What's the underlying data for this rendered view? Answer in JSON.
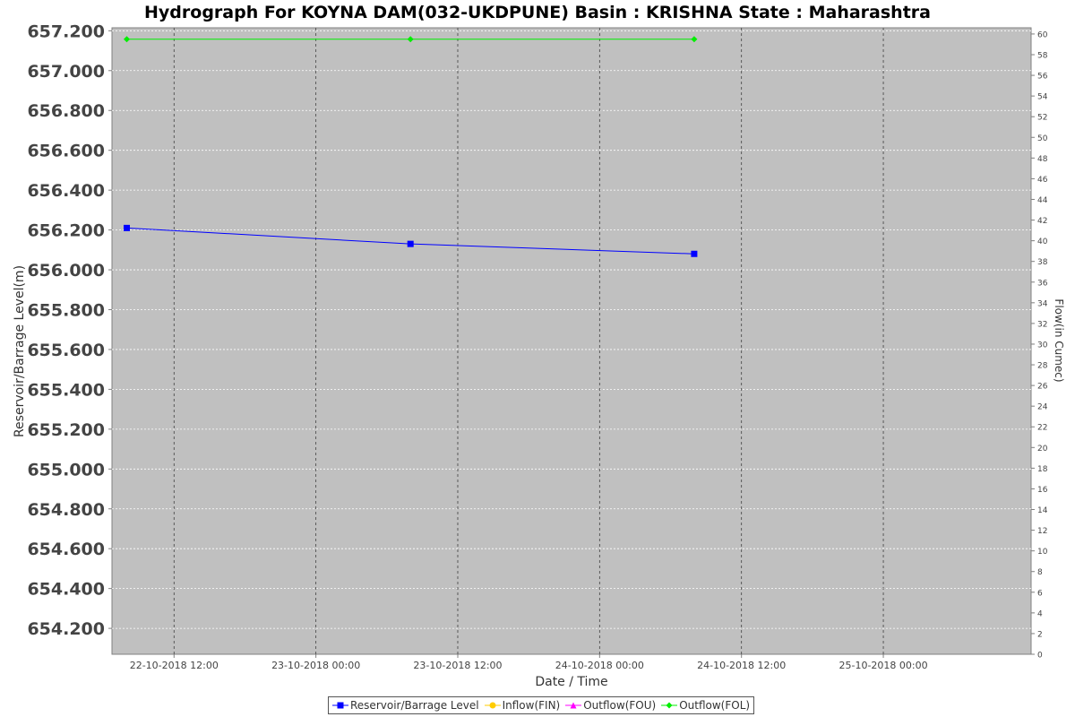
{
  "chart_data": {
    "type": "line",
    "title": "Hydrograph For KOYNA DAM(032-UKDPUNE) Basin : KRISHNA State : Maharashtra",
    "xlabel": "Date / Time",
    "ylabel": "Reservoir/Barrage Level(m)",
    "y2label": "Flow(in Cumec)",
    "x_ticks": [
      "22-10-2018 12:00",
      "23-10-2018 00:00",
      "23-10-2018 12:00",
      "24-10-2018 00:00",
      "24-10-2018 12:00",
      "25-10-2018 00:00"
    ],
    "y_ticks": [
      "654.200",
      "654.400",
      "654.600",
      "654.800",
      "655.000",
      "655.200",
      "655.400",
      "655.600",
      "655.800",
      "656.000",
      "656.200",
      "656.400",
      "656.600",
      "656.800",
      "657.000",
      "657.200"
    ],
    "y2_ticks": [
      "0",
      "2",
      "4",
      "6",
      "8",
      "10",
      "12",
      "14",
      "16",
      "18",
      "20",
      "22",
      "24",
      "26",
      "28",
      "30",
      "32",
      "34",
      "36",
      "38",
      "40",
      "42",
      "44",
      "46",
      "48",
      "50",
      "52",
      "54",
      "56",
      "58",
      "60"
    ],
    "xlim": [
      "2018-10-22 06:45",
      "2018-10-25 12:30"
    ],
    "ylim": [
      654.07,
      657.215
    ],
    "y2lim": [
      0,
      60.6
    ],
    "grid": true,
    "legend_position": "bottom",
    "series": [
      {
        "name": "Reservoir/Barrage Level",
        "axis": "left",
        "color": "#0000ff",
        "marker": "square",
        "x": [
          "2018-10-22 08:00",
          "2018-10-23 08:00",
          "2018-10-24 08:00"
        ],
        "values": [
          656.21,
          656.13,
          656.08
        ]
      },
      {
        "name": "Inflow(FIN)",
        "axis": "right",
        "color": "#ffcc00",
        "marker": "circle",
        "x": [],
        "values": []
      },
      {
        "name": "Outflow(FOU)",
        "axis": "right",
        "color": "#ff00ff",
        "marker": "triangle",
        "x": [],
        "values": []
      },
      {
        "name": "Outflow(FOL)",
        "axis": "right",
        "color": "#00ee00",
        "marker": "diamond",
        "x": [
          "2018-10-22 08:00",
          "2018-10-23 08:00",
          "2018-10-24 08:00"
        ],
        "values": [
          59.5,
          59.5,
          59.5
        ]
      }
    ]
  }
}
